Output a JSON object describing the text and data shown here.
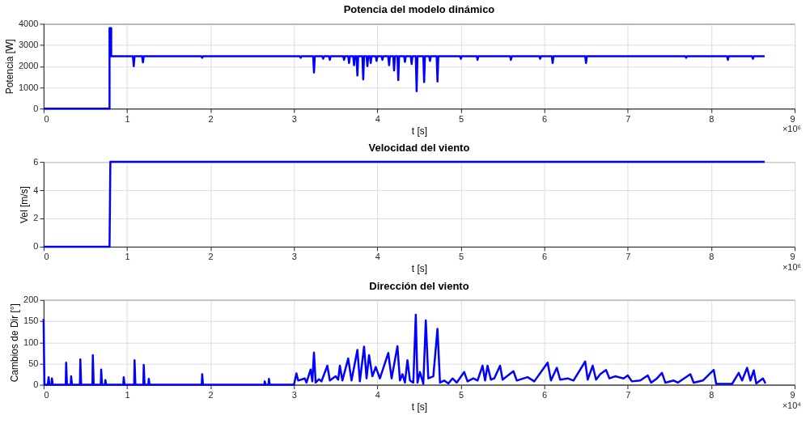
{
  "chart_data": [
    {
      "type": "line",
      "title": "Potencia del modelo dinámico",
      "xlabel": "t [s]",
      "ylabel": "Potencia [W]",
      "annotations": [
        "×10⁶"
      ],
      "grid": true,
      "xlim": [
        0,
        9
      ],
      "xticks": [
        0,
        1,
        2,
        3,
        4,
        5,
        6,
        7,
        8,
        9
      ],
      "ylim": [
        0,
        4000
      ],
      "yticks": [
        0,
        1000,
        2000,
        3000,
        4000
      ],
      "x": [
        0,
        0.79,
        0.79,
        0.81,
        0.81,
        1.07,
        1.08,
        1.09,
        1.18,
        1.19,
        1.2,
        1.89,
        1.9,
        1.91,
        3.07,
        3.08,
        3.09,
        3.23,
        3.24,
        3.25,
        3.34,
        3.35,
        3.36,
        3.42,
        3.43,
        3.44,
        3.59,
        3.6,
        3.61,
        3.65,
        3.66,
        3.67,
        3.71,
        3.72,
        3.73,
        3.75,
        3.76,
        3.77,
        3.82,
        3.83,
        3.84,
        3.87,
        3.88,
        3.89,
        3.91,
        3.92,
        3.93,
        3.98,
        3.99,
        4.0,
        4.05,
        4.06,
        4.07,
        4.13,
        4.14,
        4.15,
        4.19,
        4.2,
        4.21,
        4.24,
        4.25,
        4.26,
        4.32,
        4.33,
        4.34,
        4.4,
        4.41,
        4.42,
        4.46,
        4.47,
        4.48,
        4.55,
        4.56,
        4.57,
        4.62,
        4.63,
        4.64,
        4.71,
        4.72,
        4.73,
        4.99,
        5.0,
        5.01,
        5.19,
        5.2,
        5.21,
        5.59,
        5.6,
        5.61,
        5.94,
        5.95,
        5.96,
        6.09,
        6.1,
        6.11,
        6.49,
        6.5,
        6.51,
        7.69,
        7.7,
        7.71,
        8.19,
        8.2,
        8.21,
        8.49,
        8.5,
        8.51,
        8.64
      ],
      "series": [
        {
          "color": "#0000ff",
          "values": [
            0,
            0,
            3800,
            3800,
            2470,
            2470,
            2000,
            2470,
            2470,
            2180,
            2470,
            2470,
            2400,
            2470,
            2470,
            2400,
            2470,
            2470,
            1700,
            2470,
            2470,
            2350,
            2470,
            2470,
            2300,
            2470,
            2470,
            2300,
            2470,
            2470,
            2150,
            2470,
            2470,
            2050,
            2470,
            2470,
            1560,
            2470,
            2470,
            1380,
            2470,
            2470,
            2000,
            2470,
            2470,
            2150,
            2470,
            2470,
            2250,
            2470,
            2470,
            2300,
            2470,
            2470,
            2050,
            2470,
            2470,
            1800,
            2470,
            2470,
            1350,
            2470,
            2470,
            2200,
            2470,
            2470,
            2100,
            2470,
            2470,
            820,
            2470,
            2470,
            1250,
            2470,
            2470,
            2250,
            2470,
            2470,
            1280,
            2470,
            2470,
            2350,
            2470,
            2470,
            2300,
            2470,
            2470,
            2300,
            2470,
            2470,
            2350,
            2470,
            2470,
            2150,
            2470,
            2470,
            2150,
            2470,
            2470,
            2400,
            2470,
            2470,
            2300,
            2470,
            2470,
            2350,
            2470,
            2470
          ]
        }
      ]
    },
    {
      "type": "line",
      "title": "Velocidad del viento",
      "xlabel": "t [s]",
      "ylabel": "Vel [m/s]",
      "annotations": [
        "×10⁶"
      ],
      "grid": true,
      "xlim": [
        0,
        9
      ],
      "xticks": [
        0,
        1,
        2,
        3,
        4,
        5,
        6,
        7,
        8,
        9
      ],
      "ylim": [
        0,
        6
      ],
      "yticks": [
        0,
        2,
        4,
        6
      ],
      "x": [
        0,
        0.79,
        0.8,
        8.64
      ],
      "series": [
        {
          "color": "#0000ff",
          "values": [
            0,
            0,
            6,
            6
          ]
        }
      ]
    },
    {
      "type": "line",
      "title": "Dirección del viento",
      "xlabel": "t [s]",
      "ylabel": "Cambios de Dir [°]",
      "annotations": [
        "×10⁴"
      ],
      "grid": true,
      "xlim": [
        0,
        9
      ],
      "xticks": [
        0,
        1,
        2,
        3,
        4,
        5,
        6,
        7,
        8,
        9
      ],
      "ylim": [
        0,
        200
      ],
      "yticks": [
        0,
        50,
        100,
        150,
        200
      ],
      "x": [
        0,
        0.01,
        0.05,
        0.06,
        0.07,
        0.095,
        0.1,
        0.11,
        0.265,
        0.27,
        0.28,
        0.325,
        0.33,
        0.34,
        0.435,
        0.44,
        0.45,
        0.585,
        0.59,
        0.6,
        0.685,
        0.69,
        0.7,
        0.735,
        0.74,
        0.75,
        0.955,
        0.96,
        0.97,
        1.085,
        1.09,
        1.1,
        1.195,
        1.2,
        1.21,
        1.255,
        1.26,
        1.27,
        1.895,
        1.9,
        1.91,
        2.645,
        2.65,
        2.66,
        2.695,
        2.7,
        2.71,
        3.0,
        3.03,
        3.05,
        3.13,
        3.15,
        3.2,
        3.22,
        3.24,
        3.26,
        3.3,
        3.33,
        3.4,
        3.43,
        3.5,
        3.53,
        3.55,
        3.58,
        3.65,
        3.69,
        3.76,
        3.79,
        3.84,
        3.87,
        3.9,
        3.94,
        3.98,
        4.03,
        4.13,
        4.17,
        4.24,
        4.27,
        4.3,
        4.33,
        4.36,
        4.39,
        4.43,
        4.46,
        4.48,
        4.51,
        4.55,
        4.58,
        4.61,
        4.67,
        4.72,
        4.75,
        4.8,
        4.85,
        4.9,
        4.95,
        5.04,
        5.08,
        5.15,
        5.2,
        5.26,
        5.29,
        5.32,
        5.36,
        5.4,
        5.47,
        5.5,
        5.63,
        5.67,
        5.8,
        5.88,
        6.04,
        6.08,
        6.15,
        6.19,
        6.28,
        6.35,
        6.49,
        6.52,
        6.58,
        6.62,
        6.67,
        6.74,
        6.78,
        6.85,
        6.95,
        7.0,
        7.05,
        7.15,
        7.24,
        7.28,
        7.35,
        7.41,
        7.45,
        7.55,
        7.6,
        7.75,
        7.79,
        7.9,
        8.03,
        8.06,
        8.17,
        8.25,
        8.33,
        8.37,
        8.43,
        8.47,
        8.51,
        8.54,
        8.62,
        8.65
      ],
      "series": [
        {
          "color": "#0000ff",
          "values": [
            155,
            0,
            0,
            18,
            0,
            0,
            15,
            0,
            0,
            52,
            0,
            0,
            20,
            0,
            0,
            60,
            0,
            0,
            70,
            0,
            0,
            36,
            0,
            0,
            11,
            0,
            0,
            18,
            0,
            0,
            58,
            0,
            0,
            47,
            0,
            0,
            14,
            0,
            0,
            25,
            0,
            0,
            8,
            0,
            0,
            14,
            0,
            0,
            27,
            10,
            15,
            5,
            36,
            8,
            76,
            5,
            13,
            8,
            45,
            10,
            20,
            12,
            45,
            10,
            62,
            10,
            82,
            8,
            90,
            15,
            70,
            20,
            42,
            15,
            75,
            15,
            91,
            10,
            25,
            5,
            58,
            10,
            5,
            165,
            5,
            30,
            2,
            152,
            15,
            20,
            132,
            5,
            10,
            3,
            15,
            5,
            30,
            8,
            15,
            10,
            45,
            10,
            45,
            12,
            15,
            45,
            12,
            32,
            10,
            18,
            8,
            52,
            10,
            40,
            12,
            15,
            10,
            55,
            12,
            45,
            12,
            25,
            35,
            15,
            20,
            15,
            22,
            8,
            10,
            22,
            5,
            15,
            28,
            5,
            10,
            5,
            25,
            5,
            10,
            35,
            2,
            2,
            2,
            28,
            10,
            40,
            10,
            34,
            3,
            15,
            3
          ]
        }
      ]
    }
  ]
}
